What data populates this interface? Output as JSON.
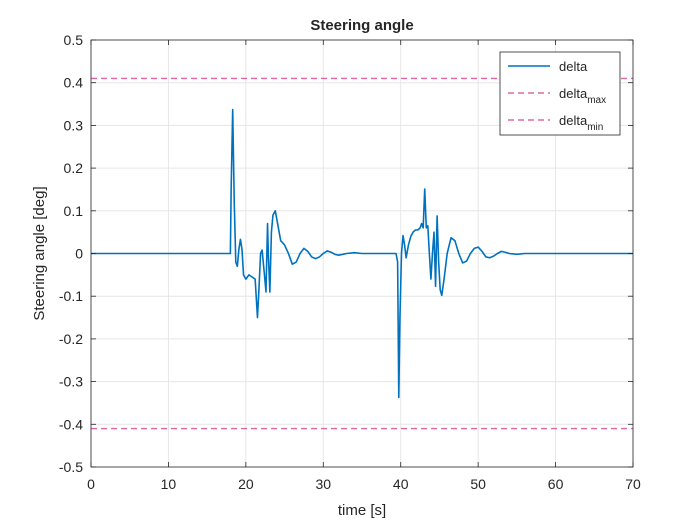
{
  "chart_data": {
    "type": "line",
    "title": "Steering angle",
    "xlabel": "time [s]",
    "ylabel": "Steering angle [deg]",
    "xlim": [
      0,
      70
    ],
    "ylim": [
      -0.5,
      0.5
    ],
    "xticks": [
      0,
      10,
      20,
      30,
      40,
      50,
      60,
      70
    ],
    "xtick_labels": [
      "0",
      "10",
      "20",
      "30",
      "40",
      "50",
      "60",
      "70"
    ],
    "yticks": [
      -0.5,
      -0.4,
      -0.3,
      -0.2,
      -0.1,
      0,
      0.1,
      0.2,
      0.3,
      0.4,
      0.5
    ],
    "ytick_labels": [
      "-0.5",
      "-0.4",
      "-0.3",
      "-0.2",
      "-0.1",
      "0",
      "0.1",
      "0.2",
      "0.3",
      "0.4",
      "0.5"
    ],
    "grid": true,
    "legend_position": "top-right",
    "series": [
      {
        "name": "delta",
        "legend_base": "delta",
        "legend_sub": "",
        "style": "solid",
        "color": "#0072BD",
        "x": [
          0,
          18.0,
          18.1,
          18.3,
          18.5,
          18.7,
          18.9,
          19.1,
          19.3,
          19.5,
          19.7,
          20.0,
          20.4,
          20.8,
          21.2,
          21.5,
          21.7,
          21.9,
          22.1,
          22.4,
          22.6,
          22.8,
          22.9,
          23.1,
          23.3,
          23.5,
          23.8,
          24.1,
          24.5,
          25.0,
          25.5,
          26.0,
          26.5,
          27.0,
          27.5,
          28.0,
          28.5,
          29.0,
          29.5,
          30.0,
          30.5,
          31.0,
          31.5,
          32.0,
          33.0,
          34.0,
          35.0,
          36.0,
          37.0,
          38.0,
          39.4,
          39.6,
          39.75,
          39.9,
          40.1,
          40.3,
          40.5,
          40.7,
          41.0,
          41.3,
          41.6,
          41.9,
          42.2,
          42.5,
          42.7,
          42.9,
          43.1,
          43.3,
          43.5,
          43.7,
          43.9,
          44.1,
          44.3,
          44.5,
          44.7,
          44.9,
          45.1,
          45.3,
          45.6,
          46.0,
          46.5,
          47.0,
          47.5,
          48.0,
          48.5,
          49.0,
          49.5,
          50.0,
          50.5,
          51.0,
          51.5,
          52.0,
          52.5,
          53.0,
          53.5,
          54.0,
          55.0,
          56.0,
          58.0,
          60.0,
          65.0,
          70.0
        ],
        "values": [
          0,
          0,
          0.15,
          0.337,
          0.12,
          -0.02,
          -0.03,
          0.01,
          0.033,
          0.01,
          -0.05,
          -0.06,
          -0.05,
          -0.055,
          -0.06,
          -0.15,
          -0.08,
          0.0,
          0.008,
          -0.05,
          -0.09,
          0.07,
          0.0,
          -0.09,
          0.05,
          0.09,
          0.1,
          0.07,
          0.03,
          0.02,
          0.0,
          -0.025,
          -0.02,
          0.0,
          0.012,
          0.005,
          -0.008,
          -0.012,
          -0.008,
          0.0,
          0.006,
          0.003,
          -0.002,
          -0.004,
          0.0,
          0.002,
          0.0,
          0.0,
          0.0,
          0.0,
          0.0,
          -0.02,
          -0.337,
          -0.15,
          0.0,
          0.042,
          0.02,
          -0.01,
          0.02,
          0.04,
          0.05,
          0.055,
          0.055,
          0.06,
          0.07,
          0.06,
          0.151,
          0.06,
          0.065,
          0.0,
          -0.06,
          0.0,
          0.05,
          -0.077,
          0.088,
          -0.02,
          -0.085,
          -0.098,
          -0.06,
          0.0,
          0.037,
          0.03,
          0.0,
          -0.022,
          -0.018,
          0.0,
          0.012,
          0.015,
          0.005,
          -0.008,
          -0.01,
          -0.006,
          0.0,
          0.005,
          0.003,
          0.0,
          -0.002,
          0.0,
          0.0,
          0.0,
          0.0,
          0.0
        ]
      },
      {
        "name": "delta_max",
        "legend_base": "delta",
        "legend_sub": "max",
        "style": "dashed",
        "color": "#E066A3",
        "x": [
          0,
          70
        ],
        "values": [
          0.41,
          0.41
        ]
      },
      {
        "name": "delta_min",
        "legend_base": "delta",
        "legend_sub": "min",
        "style": "dashed",
        "color": "#E066A3",
        "x": [
          0,
          70
        ],
        "values": [
          -0.41,
          -0.41
        ]
      }
    ]
  },
  "colors": {
    "axes": "#262626",
    "grid": "#e6e6e6",
    "delta": "#0072BD",
    "limits": "#E066A3"
  }
}
